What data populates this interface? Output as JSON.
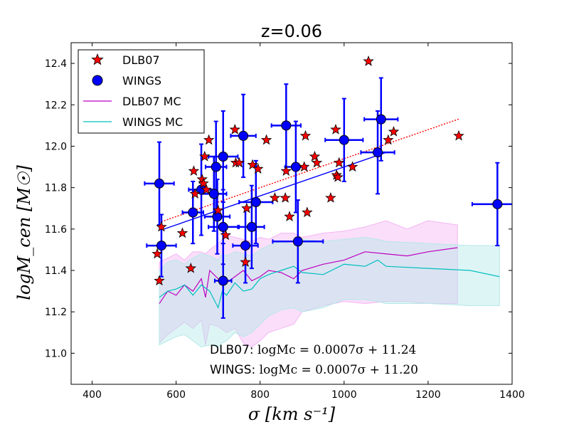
{
  "chart_data": {
    "type": "scatter",
    "title": "z=0.06",
    "xlabel": "σ    [km s⁻¹]",
    "ylabel": "logM_cen   [M☉]",
    "xlim": [
      350,
      1400
    ],
    "ylim": [
      10.85,
      12.5
    ],
    "x_ticks": [
      400,
      600,
      800,
      1000,
      1200,
      1400
    ],
    "y_ticks": [
      11.0,
      11.2,
      11.4,
      11.6,
      11.8,
      12.0,
      12.2,
      12.4
    ],
    "x_tick_labels": [
      "400",
      "600",
      "800",
      "1000",
      "1200",
      "1400"
    ],
    "y_tick_labels": [
      "11.0",
      "11.2",
      "11.4",
      "11.6",
      "11.8",
      "12.0",
      "12.2",
      "12.4"
    ],
    "legend": {
      "position": "top-left",
      "entries": [
        {
          "label": "DLB07",
          "marker": "star",
          "color": "#ff0000"
        },
        {
          "label": "WINGS",
          "marker": "circle",
          "color": "#0000ff"
        },
        {
          "label": "DLB07 MC",
          "marker": "line",
          "color": "#bf00bf"
        },
        {
          "label": "WINGS MC",
          "marker": "line",
          "color": "#00bfbf"
        }
      ]
    },
    "annotations": {
      "dlb07_prefix": "DLB07: ",
      "dlb07_formula": "logMc = 0.0007σ + 11.24",
      "wings_prefix": "WINGS: ",
      "wings_formula": "logMc = 0.0007σ + 11.20"
    },
    "colors": {
      "dlb07": "#ff0000",
      "wings": "#0000ff",
      "dlb07_mc": "#bf00bf",
      "wings_mc": "#00bfbf",
      "dlb07_band": "#f3b6f3",
      "wings_band": "#b5e8e8"
    },
    "series": [
      {
        "name": "DLB07",
        "points": [
          [
            555,
            11.48
          ],
          [
            560,
            11.35
          ],
          [
            565,
            11.61
          ],
          [
            615,
            11.58
          ],
          [
            635,
            11.41
          ],
          [
            642,
            11.88
          ],
          [
            645,
            11.77
          ],
          [
            662,
            11.84
          ],
          [
            665,
            11.82
          ],
          [
            668,
            11.95
          ],
          [
            672,
            11.79
          ],
          [
            678,
            12.03
          ],
          [
            700,
            11.69
          ],
          [
            718,
            11.57
          ],
          [
            740,
            12.08
          ],
          [
            742,
            11.92
          ],
          [
            750,
            11.92
          ],
          [
            765,
            11.44
          ],
          [
            768,
            11.7
          ],
          [
            782,
            11.91
          ],
          [
            795,
            11.89
          ],
          [
            815,
            12.03
          ],
          [
            835,
            11.75
          ],
          [
            860,
            11.75
          ],
          [
            862,
            11.88
          ],
          [
            870,
            11.66
          ],
          [
            905,
            11.9
          ],
          [
            908,
            12.05
          ],
          [
            912,
            11.68
          ],
          [
            930,
            11.95
          ],
          [
            935,
            11.92
          ],
          [
            968,
            11.75
          ],
          [
            980,
            12.08
          ],
          [
            982,
            11.86
          ],
          [
            985,
            11.85
          ],
          [
            988,
            11.92
          ],
          [
            1020,
            11.9
          ],
          [
            1058,
            12.41
          ],
          [
            1105,
            12.03
          ],
          [
            1118,
            12.07
          ],
          [
            1273,
            12.05
          ]
        ]
      },
      {
        "name": "WINGS",
        "points": [
          {
            "x": 560,
            "y": 11.82,
            "xerr": 35,
            "yerr": 0.2
          },
          {
            "x": 565,
            "y": 11.52,
            "xerr": 35,
            "yerr": 0.15
          },
          {
            "x": 640,
            "y": 11.68,
            "xerr": 25,
            "yerr": 0.15
          },
          {
            "x": 660,
            "y": 11.79,
            "xerr": 30,
            "yerr": 0.22
          },
          {
            "x": 690,
            "y": 11.77,
            "xerr": 30,
            "yerr": 0.18
          },
          {
            "x": 695,
            "y": 11.9,
            "xerr": 25,
            "yerr": 0.22
          },
          {
            "x": 698,
            "y": 11.66,
            "xerr": 30,
            "yerr": 0.18
          },
          {
            "x": 712,
            "y": 11.95,
            "xerr": 35,
            "yerr": 0.22
          },
          {
            "x": 712,
            "y": 11.61,
            "xerr": 35,
            "yerr": 0.18
          },
          {
            "x": 712,
            "y": 11.35,
            "xerr": 20,
            "yerr": 0.18
          },
          {
            "x": 760,
            "y": 12.05,
            "xerr": 30,
            "yerr": 0.2
          },
          {
            "x": 765,
            "y": 11.52,
            "xerr": 30,
            "yerr": 0.18
          },
          {
            "x": 780,
            "y": 11.61,
            "xerr": 30,
            "yerr": 0.2
          },
          {
            "x": 790,
            "y": 11.73,
            "xerr": 40,
            "yerr": 0.2
          },
          {
            "x": 862,
            "y": 12.1,
            "xerr": 35,
            "yerr": 0.2
          },
          {
            "x": 885,
            "y": 11.9,
            "xerr": 25,
            "yerr": 0.22
          },
          {
            "x": 890,
            "y": 11.54,
            "xerr": 60,
            "yerr": 0.2
          },
          {
            "x": 1000,
            "y": 12.03,
            "xerr": 45,
            "yerr": 0.2
          },
          {
            "x": 1080,
            "y": 11.97,
            "xerr": 40,
            "yerr": 0.2
          },
          {
            "x": 1088,
            "y": 12.13,
            "xerr": 40,
            "yerr": 0.2
          },
          {
            "x": 1365,
            "y": 11.72,
            "xerr": 60,
            "yerr": 0.2
          }
        ]
      },
      {
        "name": "DLB07 MC",
        "x": [
          560,
          580,
          600,
          620,
          640,
          660,
          670,
          680,
          700,
          720,
          740,
          760,
          780,
          800,
          820,
          850,
          880,
          900,
          950,
          1000,
          1050,
          1100,
          1150,
          1200,
          1270
        ],
        "y": [
          11.24,
          11.3,
          11.28,
          11.33,
          11.3,
          11.36,
          11.27,
          11.4,
          11.36,
          11.34,
          11.37,
          11.4,
          11.35,
          11.37,
          11.4,
          11.39,
          11.36,
          11.4,
          11.43,
          11.45,
          11.49,
          11.48,
          11.47,
          11.49,
          11.51
        ],
        "band_upper": [
          11.44,
          11.46,
          11.48,
          11.45,
          11.49,
          11.49,
          11.48,
          11.5,
          11.53,
          11.57,
          11.56,
          11.55,
          11.54,
          11.56,
          11.55,
          11.58,
          11.58,
          11.56,
          11.58,
          11.59,
          11.61,
          11.64,
          11.6,
          11.64,
          11.62
        ],
        "band_lower": [
          11.05,
          11.09,
          11.12,
          11.15,
          11.12,
          11.16,
          11.04,
          11.14,
          11.13,
          11.1,
          11.12,
          11.05,
          11.03,
          11.06,
          11.1,
          11.12,
          11.14,
          11.2,
          11.23,
          11.25,
          11.24,
          11.25,
          11.25,
          11.24,
          11.24
        ]
      },
      {
        "name": "WINGS MC",
        "x": [
          560,
          580,
          600,
          620,
          640,
          660,
          680,
          700,
          710,
          720,
          740,
          760,
          780,
          800,
          820,
          850,
          880,
          900,
          950,
          1000,
          1050,
          1080,
          1100,
          1200,
          1300,
          1370
        ],
        "y": [
          11.27,
          11.3,
          11.31,
          11.33,
          11.28,
          11.33,
          11.3,
          11.22,
          11.3,
          11.28,
          11.34,
          11.3,
          11.31,
          11.36,
          11.38,
          11.4,
          11.42,
          11.39,
          11.38,
          11.43,
          11.42,
          11.45,
          11.42,
          11.41,
          11.4,
          11.37
        ],
        "band_upper": [
          11.4,
          11.44,
          11.45,
          11.43,
          11.46,
          11.48,
          11.47,
          11.45,
          11.48,
          11.47,
          11.49,
          11.48,
          11.47,
          11.5,
          11.52,
          11.54,
          11.52,
          11.55,
          11.54,
          11.55,
          11.56,
          11.55,
          11.54,
          11.53,
          11.52,
          11.52
        ],
        "band_lower": [
          11.04,
          11.06,
          11.08,
          11.09,
          11.06,
          11.03,
          11.04,
          11.03,
          11.05,
          11.06,
          11.1,
          11.08,
          11.1,
          11.14,
          11.18,
          11.21,
          11.22,
          11.2,
          11.22,
          11.26,
          11.26,
          11.25,
          11.24,
          11.24,
          11.23,
          11.23
        ]
      },
      {
        "name": "DLB07 fit",
        "style": "dotted",
        "x_range": [
          565,
          1275
        ],
        "slope": 0.0007,
        "intercept": 11.24
      },
      {
        "name": "WINGS fit",
        "style": "solid",
        "x_range": [
          565,
          1100
        ],
        "slope": 0.0007,
        "intercept": 11.2
      }
    ]
  }
}
